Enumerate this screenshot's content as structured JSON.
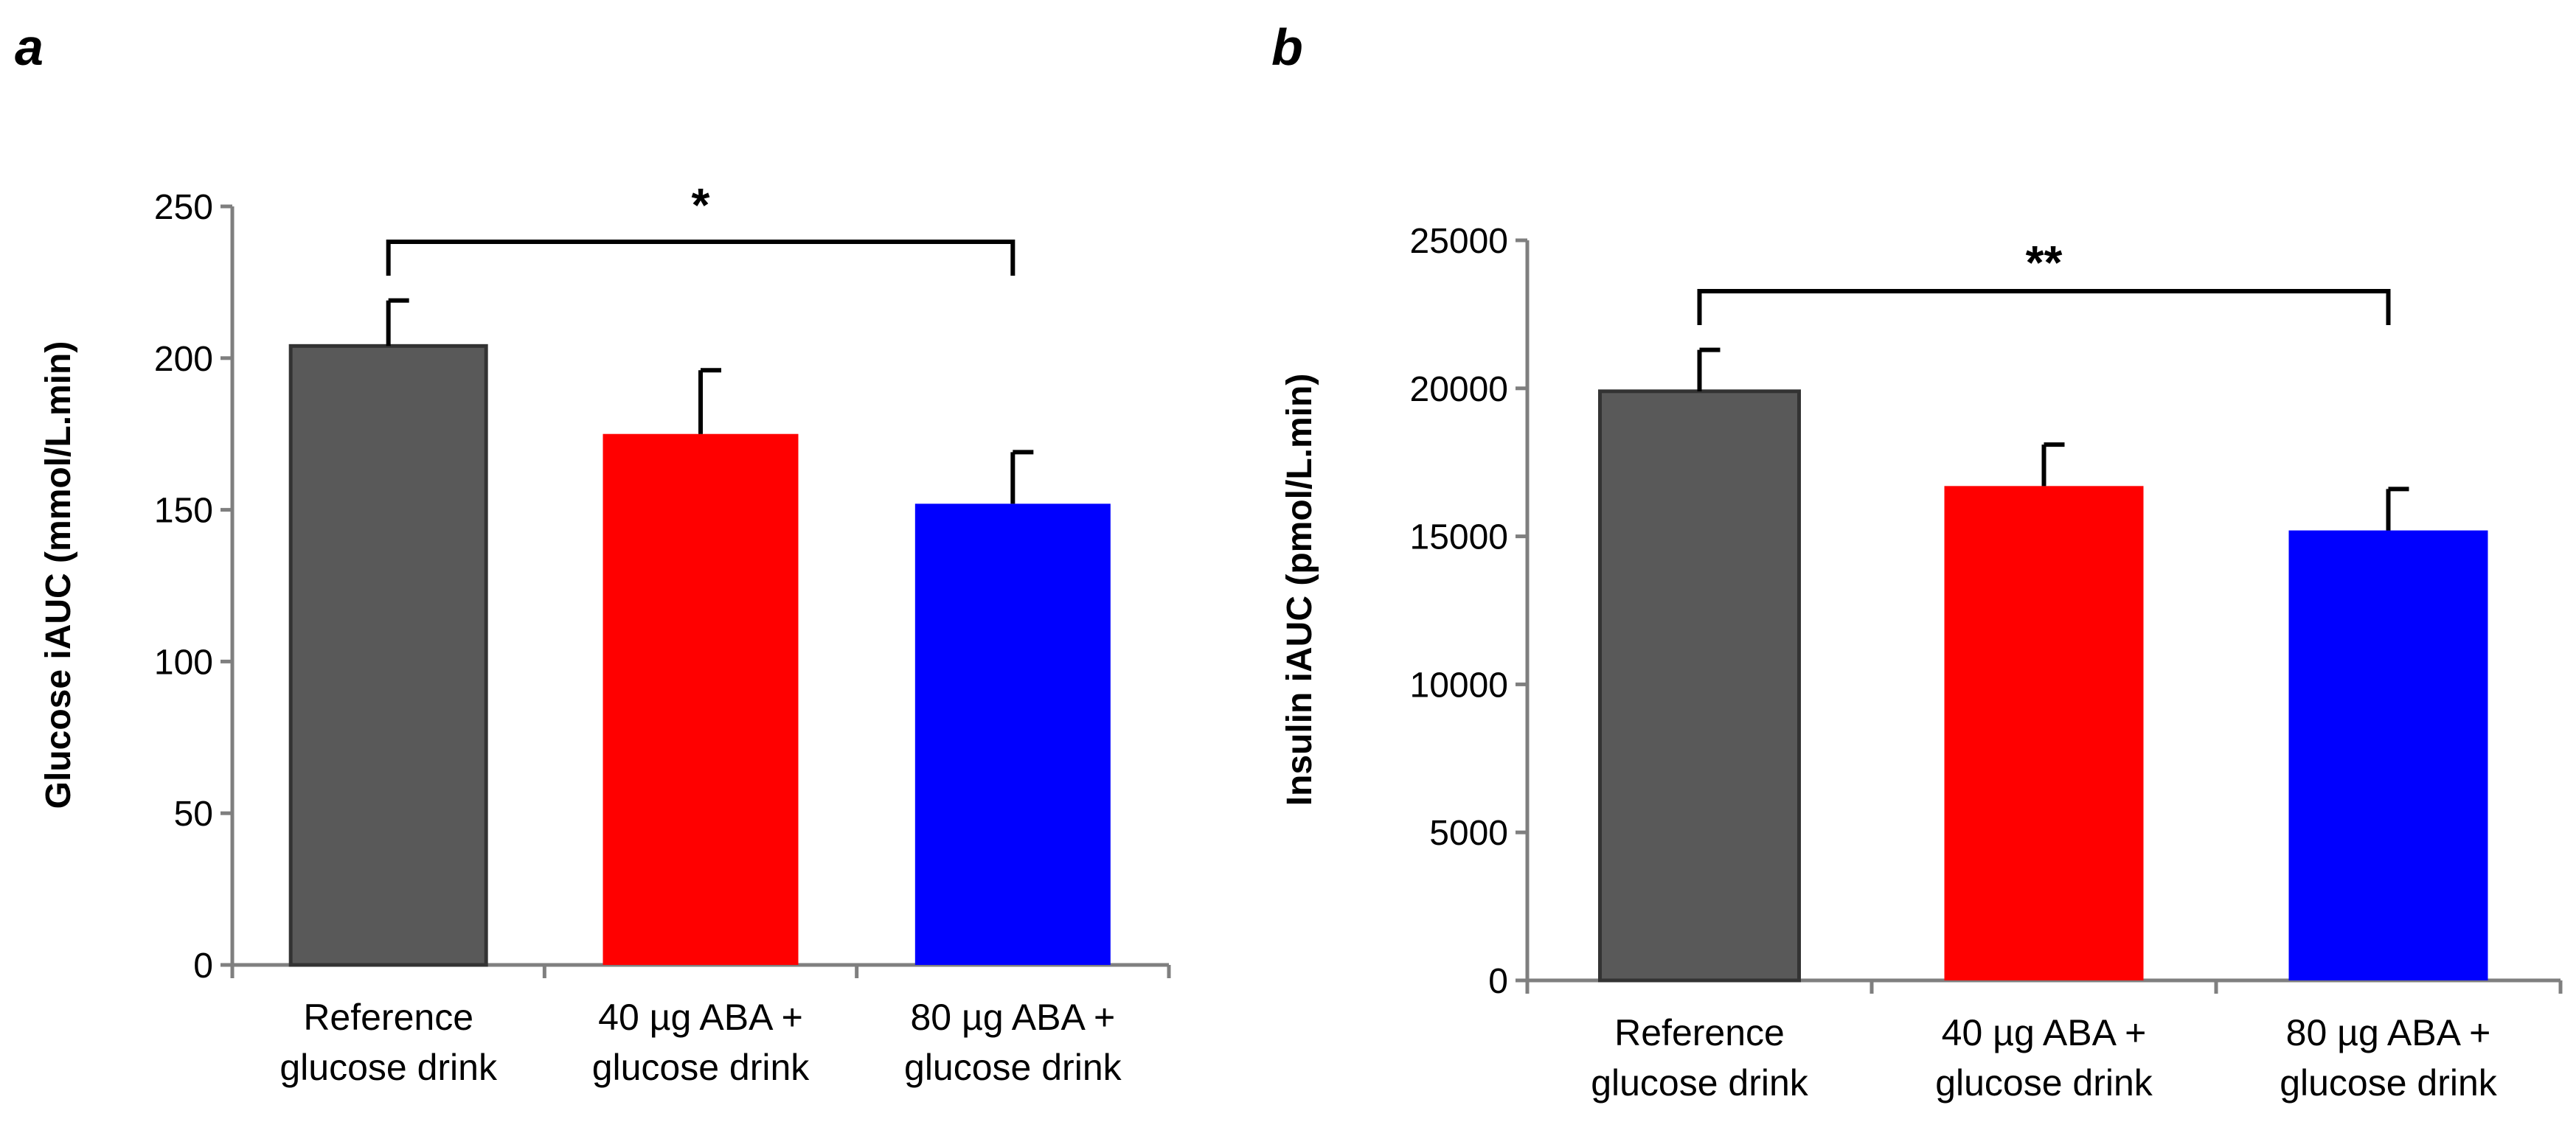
{
  "chart_data": [
    {
      "type": "bar",
      "panel_label": "a",
      "categories": [
        [
          "Reference",
          "glucose drink"
        ],
        [
          "40 µg ABA +",
          "glucose drink"
        ],
        [
          "80 µg ABA +",
          "glucose drink"
        ]
      ],
      "values": [
        204,
        175,
        152
      ],
      "errors": [
        15,
        21,
        17
      ],
      "colors": [
        "#595959",
        "#ff0000",
        "#0000ff"
      ],
      "ylabel": "Glucose  iAUC (mmol/L.min)",
      "ylim": [
        0,
        250
      ],
      "yticks": [
        "0",
        "50",
        "100",
        "150",
        "200",
        "250"
      ],
      "significance": {
        "from": 0,
        "to": 2,
        "label": "*"
      }
    },
    {
      "type": "bar",
      "panel_label": "b",
      "categories": [
        [
          "Reference",
          "glucose drink"
        ],
        [
          "40 µg ABA +",
          "glucose drink"
        ],
        [
          "80 µg ABA +",
          "glucose drink"
        ]
      ],
      "values": [
        19900,
        16700,
        15200
      ],
      "errors": [
        1400,
        1400,
        1400
      ],
      "colors": [
        "#595959",
        "#ff0000",
        "#0000ff"
      ],
      "ylabel": "Insulin  iAUC (pmol/L.min)",
      "ylim": [
        0,
        25000
      ],
      "yticks": [
        "0",
        "5000",
        "10000",
        "15000",
        "20000",
        "25000"
      ],
      "significance": {
        "from": 0,
        "to": 2,
        "label": "**"
      }
    }
  ]
}
